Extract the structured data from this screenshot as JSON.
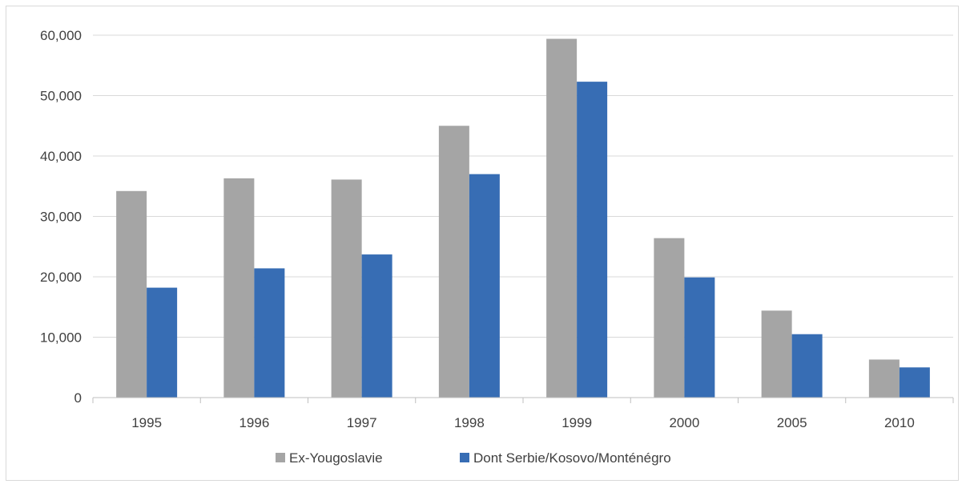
{
  "chart_data": {
    "type": "bar",
    "title": "",
    "xlabel": "",
    "ylabel": "",
    "categories": [
      "1995",
      "1996",
      "1997",
      "1998",
      "1999",
      "2000",
      "2005",
      "2010"
    ],
    "series": [
      {
        "name": "Ex-Yougoslavie",
        "color": "#a5a5a5",
        "values": [
          34200,
          36300,
          36100,
          45000,
          59400,
          26400,
          14400,
          6300
        ]
      },
      {
        "name": "Dont Serbie/Kosovo/Monténégro",
        "color": "#376db4",
        "values": [
          18200,
          21400,
          23700,
          37000,
          52300,
          19900,
          10500,
          5000
        ]
      }
    ],
    "ylim": [
      0,
      60000
    ],
    "yticks": [
      0,
      10000,
      20000,
      30000,
      40000,
      50000,
      60000
    ],
    "ytick_labels": [
      "0",
      "10,000",
      "20,000",
      "30,000",
      "40,000",
      "50,000",
      "60,000"
    ],
    "grid": true,
    "legend_position": "bottom"
  }
}
